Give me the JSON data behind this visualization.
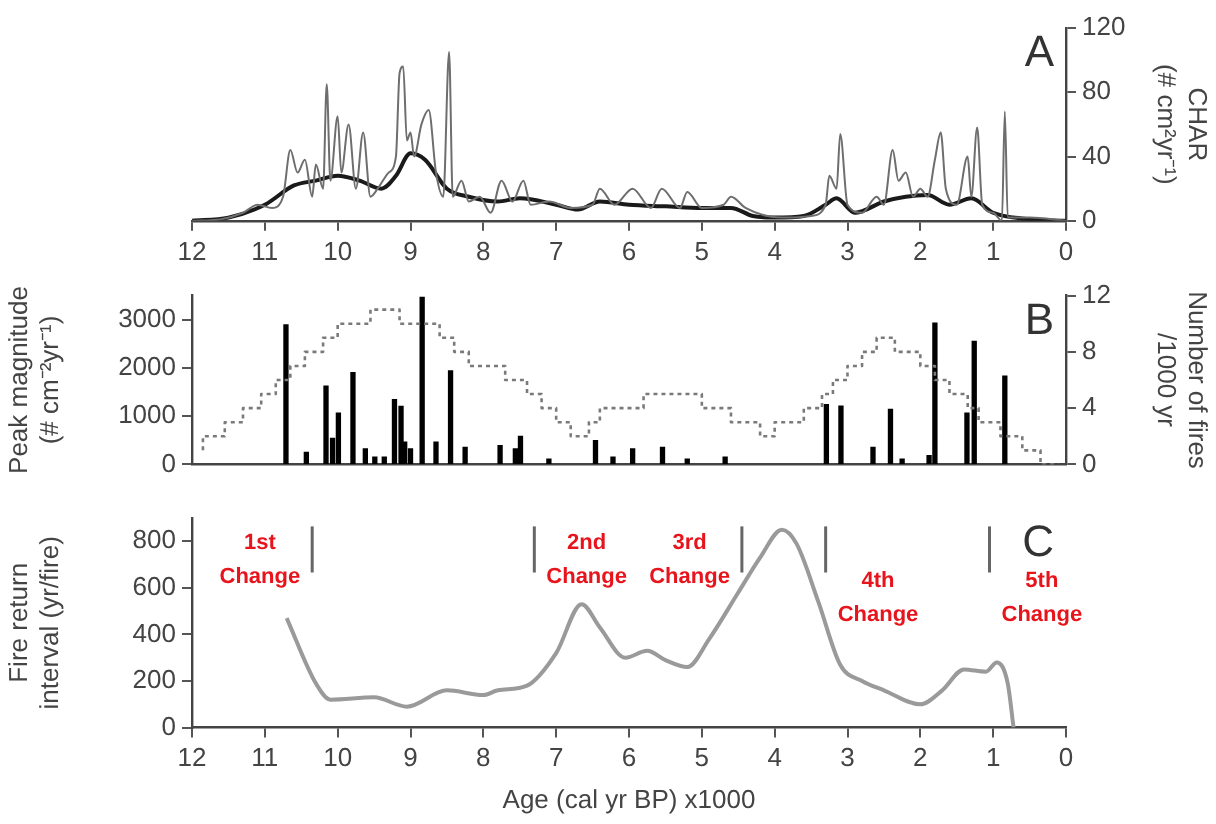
{
  "chart_data": [
    {
      "type": "line",
      "ylabel": "CHAR (# cm²yr⁻¹)",
      "xlim": [
        12,
        0
      ],
      "xticks": [
        12,
        11,
        10,
        9,
        8,
        7,
        6,
        5,
        4,
        3,
        2,
        1,
        0
      ],
      "ylim": [
        0,
        120
      ],
      "yticks": [
        0,
        40,
        80,
        120
      ],
      "annotations": [
        "A"
      ],
      "series": [
        {
          "color": "#6e6e6e",
          "x": [
            12,
            11.6,
            11.3,
            11.1,
            10.9,
            10.75,
            10.65,
            10.55,
            10.45,
            10.35,
            10.3,
            10.2,
            10.15,
            10.1,
            10.0,
            9.95,
            9.85,
            9.75,
            9.65,
            9.55,
            9.45,
            9.3,
            9.2,
            9.15,
            9.1,
            9.05,
            9.0,
            8.95,
            8.85,
            8.75,
            8.65,
            8.55,
            8.47,
            8.42,
            8.3,
            8.2,
            8.05,
            7.9,
            7.75,
            7.6,
            7.45,
            7.35,
            7.1,
            6.8,
            6.5,
            6.4,
            6.2,
            5.95,
            5.7,
            5.55,
            5.3,
            5.2,
            5.0,
            4.7,
            4.6,
            4.4,
            4.1,
            3.8,
            3.5,
            3.3,
            3.25,
            3.15,
            3.1,
            3.0,
            2.8,
            2.6,
            2.5,
            2.38,
            2.3,
            2.2,
            2.1,
            2.0,
            1.9,
            1.8,
            1.72,
            1.65,
            1.5,
            1.35,
            1.3,
            1.22,
            1.15,
            1.0,
            0.88,
            0.84,
            0.8,
            0.5,
            0
          ],
          "values": [
            0,
            1,
            5,
            10,
            8,
            15,
            44,
            30,
            38,
            15,
            35,
            20,
            85,
            25,
            65,
            30,
            60,
            20,
            55,
            15,
            20,
            30,
            40,
            92,
            96,
            50,
            55,
            40,
            60,
            69,
            30,
            15,
            105,
            15,
            25,
            12,
            15,
            5,
            25,
            12,
            25,
            10,
            12,
            8,
            10,
            20,
            10,
            20,
            8,
            20,
            8,
            18,
            8,
            10,
            15,
            8,
            3,
            2,
            3,
            10,
            28,
            20,
            54,
            10,
            5,
            15,
            10,
            44,
            25,
            30,
            15,
            20,
            15,
            38,
            55,
            20,
            10,
            40,
            15,
            58,
            10,
            5,
            0,
            68,
            2,
            2,
            0
          ]
        },
        {
          "color": "#1a1a1a",
          "x": [
            12,
            11.5,
            11.0,
            10.6,
            10.3,
            10.0,
            9.7,
            9.4,
            9.2,
            9.0,
            8.8,
            8.5,
            8.2,
            7.8,
            7.5,
            7.0,
            6.7,
            6.4,
            6.0,
            5.5,
            5.0,
            4.6,
            4.3,
            4.0,
            3.6,
            3.3,
            3.15,
            2.9,
            2.5,
            2.2,
            1.9,
            1.6,
            1.3,
            1.0,
            0.5,
            0
          ],
          "values": [
            0,
            2,
            10,
            22,
            25,
            28,
            25,
            20,
            28,
            42,
            38,
            20,
            15,
            12,
            14,
            10,
            7,
            12,
            10,
            9,
            8,
            8,
            3,
            2,
            3,
            10,
            14,
            5,
            12,
            15,
            16,
            10,
            14,
            5,
            1,
            0
          ]
        }
      ]
    },
    {
      "type": "bar",
      "ylabel": "Peak magnitude (# cm⁻²yr⁻¹)",
      "y2label": "Number of fires /1000 yr",
      "xlim": [
        12,
        0
      ],
      "ylim": [
        0,
        3500
      ],
      "yticks": [
        0,
        1000,
        2000,
        3000
      ],
      "y2lim": [
        0,
        12
      ],
      "y2ticks": [
        0,
        4,
        8,
        12
      ],
      "tick_labels": "y",
      "annotations": [
        "B"
      ],
      "series": [
        {
          "type": "bar",
          "color": "#000000",
          "x": [
            10.71,
            10.43,
            10.16,
            10.07,
            9.99,
            9.79,
            9.62,
            9.49,
            9.36,
            9.22,
            9.13,
            9.08,
            9.0,
            8.84,
            8.65,
            8.45,
            8.25,
            7.77,
            7.56,
            7.49,
            7.1,
            6.46,
            6.22,
            5.95,
            5.54,
            5.2,
            4.68,
            3.29,
            3.09,
            2.65,
            2.41,
            2.25,
            1.88,
            1.8,
            1.36,
            1.26,
            0.84
          ],
          "values": [
            2890,
            250,
            1620,
            540,
            1060,
            1900,
            320,
            150,
            150,
            1340,
            1200,
            460,
            320,
            3460,
            460,
            1940,
            350,
            390,
            320,
            580,
            110,
            490,
            150,
            320,
            350,
            110,
            150,
            1240,
            1210,
            350,
            1140,
            110,
            180,
            2930,
            1060,
            2550,
            1830
          ]
        },
        {
          "type": "step",
          "axis": "y2",
          "color": "#7a7a7a",
          "line_style": "dotted",
          "x": [
            11.85,
            11.55,
            11.3,
            11.05,
            10.85,
            10.65,
            10.45,
            10.2,
            10.0,
            9.55,
            9.15,
            8.6,
            8.4,
            8.2,
            7.7,
            7.4,
            7.2,
            7.0,
            6.8,
            6.55,
            6.4,
            5.8,
            5.0,
            4.6,
            4.2,
            4.0,
            3.6,
            3.35,
            3.2,
            3.0,
            2.8,
            2.6,
            2.35,
            2.0,
            1.8,
            1.6,
            1.35,
            1.2,
            0.9,
            0.6,
            0.35,
            0.1
          ],
          "values": [
            1,
            2,
            3,
            4,
            5,
            6,
            7,
            8,
            9,
            10,
            11,
            10,
            9,
            8,
            7,
            6,
            5,
            4,
            3,
            2,
            3,
            4,
            5,
            4,
            3,
            2,
            3,
            4,
            5,
            6,
            7,
            8,
            9,
            8,
            7,
            6,
            5,
            4,
            3,
            2,
            1,
            0
          ]
        }
      ]
    },
    {
      "type": "line",
      "xlabel": "Age (cal yr BP) x1000",
      "ylabel": "Fire return interval (yr/fire)",
      "xlim": [
        12,
        0
      ],
      "xticks": [
        12,
        11,
        10,
        9,
        8,
        7,
        6,
        5,
        4,
        3,
        2,
        1,
        0
      ],
      "ylim": [
        0,
        900
      ],
      "yticks": [
        0,
        200,
        400,
        600,
        800
      ],
      "ref_lines": [
        {
          "axis": "x",
          "value": 10.35,
          "color": "#666666",
          "label": "1st Change"
        },
        {
          "axis": "x",
          "value": 7.3,
          "color": "#666666",
          "label": "2nd Change"
        },
        {
          "axis": "x",
          "value": 4.45,
          "color": "#666666",
          "label": "3rd Change"
        },
        {
          "axis": "x",
          "value": 3.3,
          "color": "#666666",
          "label": "4th Change"
        },
        {
          "axis": "x",
          "value": 1.05,
          "color": "#666666",
          "label": "5th Change"
        }
      ],
      "annotations": [
        "C"
      ],
      "series": [
        {
          "color": "#9a9a9a",
          "x": [
            10.7,
            10.3,
            10.1,
            9.5,
            9.05,
            8.5,
            8.0,
            7.8,
            7.4,
            7.0,
            6.65,
            6.4,
            6.05,
            5.75,
            5.5,
            5.2,
            4.9,
            4.5,
            4.2,
            3.9,
            3.7,
            3.4,
            3.1,
            2.8,
            2.5,
            2.0,
            1.7,
            1.4,
            1.1,
            0.95,
            0.8,
            0.72
          ],
          "values": [
            470,
            190,
            120,
            130,
            90,
            160,
            140,
            160,
            180,
            320,
            530,
            430,
            300,
            330,
            290,
            260,
            380,
            580,
            730,
            850,
            790,
            540,
            270,
            200,
            160,
            100,
            160,
            250,
            240,
            280,
            190,
            0
          ]
        }
      ]
    }
  ]
}
